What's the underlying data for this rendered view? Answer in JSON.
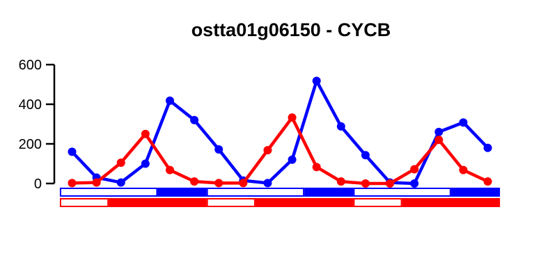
{
  "chart_data": {
    "type": "line",
    "title": "ostta01g06150 - CYCB",
    "xlabel": "",
    "ylabel": "",
    "ylim": [
      0,
      600
    ],
    "yticks": [
      0,
      200,
      400,
      600
    ],
    "ytick_labels": [
      "0",
      "200",
      "400",
      "600"
    ],
    "grid": false,
    "x": [
      1,
      2,
      3,
      4,
      5,
      6,
      7,
      8,
      9,
      10,
      11,
      12,
      13,
      14,
      15,
      16,
      17,
      18
    ],
    "series": [
      {
        "color": "#0000ff",
        "values": [
          160,
          30,
          5,
          100,
          418,
          320,
          172,
          15,
          2,
          120,
          518,
          288,
          143,
          5,
          0,
          260,
          308,
          180
        ]
      },
      {
        "color": "#ff0000",
        "values": [
          2,
          5,
          105,
          250,
          68,
          10,
          2,
          2,
          168,
          333,
          83,
          10,
          0,
          0,
          72,
          220,
          68,
          10
        ]
      }
    ],
    "condition_bars": [
      {
        "color": "#0000ff",
        "segments": [
          {
            "from": 0.5,
            "to": 4.5,
            "filled": false
          },
          {
            "from": 4.5,
            "to": 6.5,
            "filled": true
          },
          {
            "from": 6.5,
            "to": 10.5,
            "filled": false
          },
          {
            "from": 10.5,
            "to": 12.5,
            "filled": true
          },
          {
            "from": 12.5,
            "to": 16.5,
            "filled": false
          },
          {
            "from": 16.5,
            "to": 18.5,
            "filled": true
          }
        ]
      },
      {
        "color": "#ff0000",
        "segments": [
          {
            "from": 0.5,
            "to": 2.5,
            "filled": false
          },
          {
            "from": 2.5,
            "to": 6.5,
            "filled": true
          },
          {
            "from": 6.5,
            "to": 8.5,
            "filled": false
          },
          {
            "from": 8.5,
            "to": 12.5,
            "filled": true
          },
          {
            "from": 12.5,
            "to": 14.5,
            "filled": false
          },
          {
            "from": 14.5,
            "to": 18.5,
            "filled": true
          }
        ]
      }
    ]
  }
}
